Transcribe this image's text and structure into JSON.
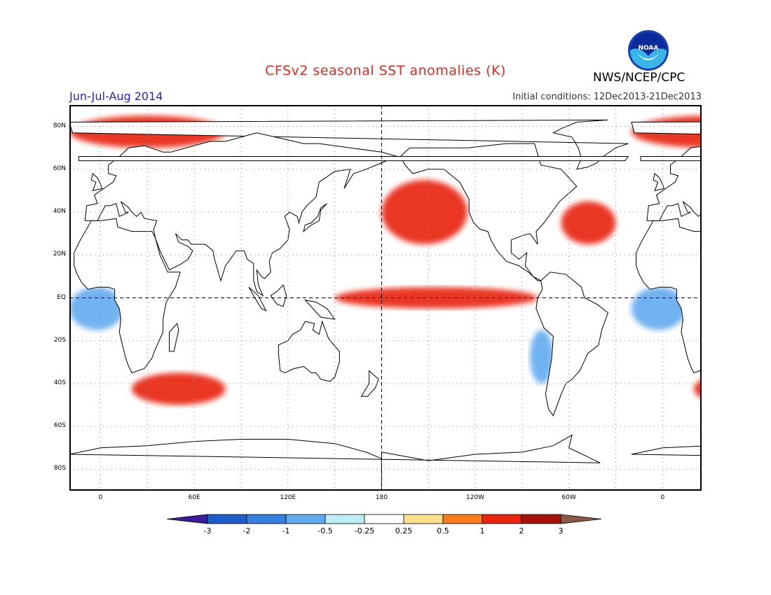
{
  "title": "CFSv2 seasonal SST anomalies (K)",
  "period": "Jun-Jul-Aug 2014",
  "initial_conditions": "Initial conditions: 12Dec2013-21Dec2013",
  "agency": "NWS/NCEP/CPC",
  "logo": {
    "icon": "noaa-logo-icon",
    "text": "NOAA"
  },
  "map": {
    "projection": "cylindrical-equidistant",
    "lon_range": [
      -20,
      385
    ],
    "lat_range": [
      -90,
      90
    ],
    "grid": true,
    "lat_labels": [
      "80N",
      "60N",
      "40N",
      "20N",
      "EQ",
      "20S",
      "40S",
      "60S",
      "80S"
    ],
    "lon_labels": [
      "0",
      "60E",
      "120E",
      "180",
      "120W",
      "60W",
      "0"
    ],
    "reference_lines": [
      "equator",
      "180 meridian"
    ]
  },
  "colorbar": {
    "labels": [
      "-3",
      "-2",
      "-1",
      "-0.5",
      "-0.25",
      "0.25",
      "0.5",
      "1",
      "2",
      "3"
    ],
    "colors": [
      "#3d1a9e",
      "#1d5ec8",
      "#3580e0",
      "#62aaef",
      "#bdeef7",
      "#ffffff",
      "#fde08a",
      "#fb7d1b",
      "#e8240f",
      "#a8120a",
      "#8a5a44"
    ]
  },
  "chart_data": {
    "type": "heatmap",
    "title": "CFSv2 seasonal SST anomalies (K)",
    "subtitle": "Jun-Jul-Aug 2014",
    "units": "K",
    "variable": "SST anomaly",
    "bins": [
      -3,
      -2,
      -1,
      -0.5,
      -0.25,
      0.25,
      0.5,
      1,
      2,
      3
    ],
    "legend": "bottom",
    "features": [
      {
        "lon": [
          150,
          280
        ],
        "lat": [
          -5,
          5
        ],
        "value": 1.5
      },
      {
        "lon": [
          180,
          235
        ],
        "lat": [
          25,
          55
        ],
        "value": 1.2
      },
      {
        "lon": [
          295,
          330
        ],
        "lat": [
          25,
          45
        ],
        "value": 1.2
      },
      {
        "lon": [
          20,
          80
        ],
        "lat": [
          -50,
          -35
        ],
        "value": 1.8
      },
      {
        "lon": [
          -20,
          15
        ],
        "lat": [
          -15,
          5
        ],
        "value": -0.8
      },
      {
        "lon": [
          275,
          290
        ],
        "lat": [
          -40,
          -15
        ],
        "value": -0.8
      },
      {
        "lon": [
          -20,
          80
        ],
        "lat": [
          70,
          85
        ],
        "value": 1.5
      }
    ]
  }
}
